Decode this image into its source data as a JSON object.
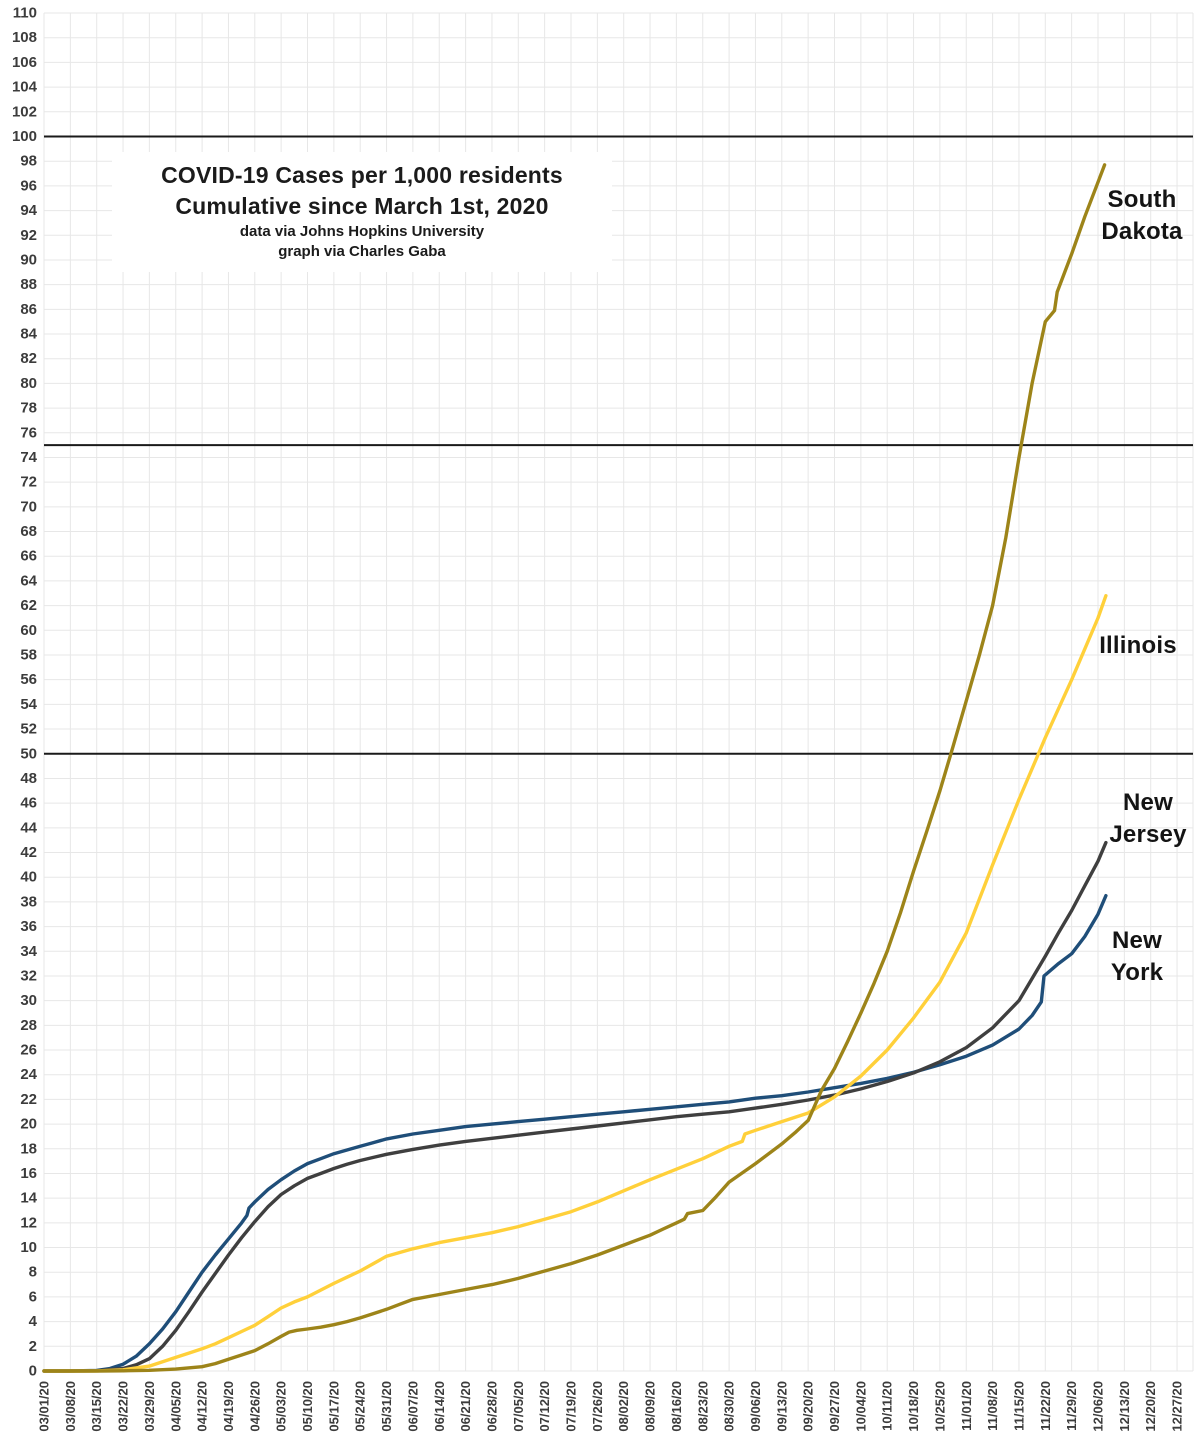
{
  "title": {
    "line1": "COVID-19 Cases per 1,000 residents",
    "line2": "Cumulative since March 1st, 2020",
    "credit1": "data via Johns Hopkins University",
    "credit2": "graph via Charles Gaba"
  },
  "colors": {
    "grid": "#e7e7e7",
    "reference_line": "#1a1a1a",
    "tick_text": "#3c3c3c",
    "background": "#ffffff"
  },
  "chart_data": {
    "type": "line",
    "title": "COVID-19 Cases per 1,000 residents",
    "subtitle": "Cumulative since March 1st, 2020",
    "xlabel": "",
    "ylabel": "cases per 1,000 residents",
    "grid": true,
    "legend_position": "inline-right-labels",
    "x_unit": "weeks since 03/01/20 (fractional weeks = intra-week dates)",
    "x_tick_labels": [
      "03/01/20",
      "03/08/20",
      "03/15/20",
      "03/22/20",
      "03/29/20",
      "04/05/20",
      "04/12/20",
      "04/19/20",
      "04/26/20",
      "05/03/20",
      "05/10/20",
      "05/17/20",
      "05/24/20",
      "05/31/20",
      "06/07/20",
      "06/14/20",
      "06/21/20",
      "06/28/20",
      "07/05/20",
      "07/12/20",
      "07/19/20",
      "07/26/20",
      "08/02/20",
      "08/09/20",
      "08/16/20",
      "08/23/20",
      "08/30/20",
      "09/06/20",
      "09/13/20",
      "09/20/20",
      "09/27/20",
      "10/04/20",
      "10/11/20",
      "10/18/20",
      "10/25/20",
      "11/01/20",
      "11/08/20",
      "11/15/20",
      "11/22/20",
      "11/29/20",
      "12/06/20",
      "12/13/20",
      "12/20/20",
      "12/27/20"
    ],
    "y_axis": {
      "min": 0,
      "max": 110,
      "tick_step": 2,
      "reference_lines": [
        50,
        75,
        100
      ]
    },
    "series": [
      {
        "name": "New York",
        "label_lines": [
          "New",
          "York"
        ],
        "color": "#1F4E79",
        "end_value": 38.5,
        "points": [
          [
            0,
            0
          ],
          [
            1,
            0.01
          ],
          [
            2,
            0.05
          ],
          [
            2.5,
            0.2
          ],
          [
            3,
            0.55
          ],
          [
            3.5,
            1.2
          ],
          [
            4,
            2.2
          ],
          [
            4.5,
            3.4
          ],
          [
            5,
            4.8
          ],
          [
            5.5,
            6.4
          ],
          [
            6,
            8
          ],
          [
            6.5,
            9.4
          ],
          [
            7,
            10.7
          ],
          [
            7.5,
            12
          ],
          [
            7.7,
            12.6
          ],
          [
            7.78,
            13.2
          ],
          [
            8,
            13.7
          ],
          [
            8.5,
            14.7
          ],
          [
            9,
            15.5
          ],
          [
            9.5,
            16.2
          ],
          [
            10,
            16.8
          ],
          [
            10.5,
            17.2
          ],
          [
            11,
            17.6
          ],
          [
            11.5,
            17.9
          ],
          [
            12,
            18.2
          ],
          [
            12.5,
            18.5
          ],
          [
            13,
            18.8
          ],
          [
            14,
            19.2
          ],
          [
            15,
            19.5
          ],
          [
            16,
            19.8
          ],
          [
            17,
            20
          ],
          [
            18,
            20.2
          ],
          [
            19,
            20.4
          ],
          [
            20,
            20.6
          ],
          [
            21,
            20.8
          ],
          [
            22,
            21
          ],
          [
            23,
            21.2
          ],
          [
            24,
            21.4
          ],
          [
            25,
            21.6
          ],
          [
            26,
            21.8
          ],
          [
            27,
            22.1
          ],
          [
            28,
            22.3
          ],
          [
            29,
            22.6
          ],
          [
            30,
            22.95
          ],
          [
            31,
            23.3
          ],
          [
            32,
            23.7
          ],
          [
            33,
            24.2
          ],
          [
            34,
            24.8
          ],
          [
            35,
            25.5
          ],
          [
            36,
            26.4
          ],
          [
            37,
            27.7
          ],
          [
            37.5,
            28.8
          ],
          [
            37.85,
            29.9
          ],
          [
            37.95,
            32
          ],
          [
            38.5,
            33
          ],
          [
            39,
            33.8
          ],
          [
            39.5,
            35.2
          ],
          [
            40,
            37
          ],
          [
            40.3,
            38.5
          ]
        ]
      },
      {
        "name": "New Jersey",
        "label_lines": [
          "New",
          "Jersey"
        ],
        "color": "#3f3f3f",
        "end_value": 42.8,
        "points": [
          [
            0,
            0
          ],
          [
            1,
            0
          ],
          [
            2,
            0.02
          ],
          [
            3,
            0.2
          ],
          [
            3.5,
            0.5
          ],
          [
            4,
            1
          ],
          [
            4.5,
            2
          ],
          [
            5,
            3.3
          ],
          [
            5.5,
            4.8
          ],
          [
            6,
            6.4
          ],
          [
            6.5,
            7.9
          ],
          [
            7,
            9.4
          ],
          [
            7.5,
            10.8
          ],
          [
            8,
            12.1
          ],
          [
            8.5,
            13.3
          ],
          [
            9,
            14.3
          ],
          [
            9.5,
            15
          ],
          [
            10,
            15.6
          ],
          [
            10.5,
            16
          ],
          [
            11,
            16.4
          ],
          [
            11.5,
            16.75
          ],
          [
            12,
            17.05
          ],
          [
            12.5,
            17.3
          ],
          [
            13,
            17.55
          ],
          [
            14,
            17.95
          ],
          [
            15,
            18.3
          ],
          [
            16,
            18.6
          ],
          [
            17,
            18.85
          ],
          [
            18,
            19.1
          ],
          [
            19,
            19.35
          ],
          [
            20,
            19.6
          ],
          [
            21,
            19.85
          ],
          [
            22,
            20.1
          ],
          [
            23,
            20.35
          ],
          [
            24,
            20.6
          ],
          [
            25,
            20.8
          ],
          [
            26,
            21
          ],
          [
            27,
            21.3
          ],
          [
            28,
            21.6
          ],
          [
            29,
            21.95
          ],
          [
            30,
            22.35
          ],
          [
            31,
            22.85
          ],
          [
            32,
            23.45
          ],
          [
            33,
            24.15
          ],
          [
            34,
            25.05
          ],
          [
            35,
            26.2
          ],
          [
            36,
            27.8
          ],
          [
            37,
            30
          ],
          [
            38,
            33.6
          ],
          [
            38.5,
            35.5
          ],
          [
            39,
            37.3
          ],
          [
            39.5,
            39.3
          ],
          [
            40,
            41.3
          ],
          [
            40.3,
            42.8
          ]
        ]
      },
      {
        "name": "Illinois",
        "label_lines": [
          "Illinois"
        ],
        "color": "#FFD03A",
        "end_value": 62.8,
        "points": [
          [
            0,
            0
          ],
          [
            1,
            0
          ],
          [
            2,
            0.01
          ],
          [
            3,
            0.1
          ],
          [
            4,
            0.4
          ],
          [
            5,
            1.1
          ],
          [
            5.5,
            1.45
          ],
          [
            6,
            1.8
          ],
          [
            6.5,
            2.2
          ],
          [
            7,
            2.7
          ],
          [
            7.5,
            3.2
          ],
          [
            8,
            3.7
          ],
          [
            8.5,
            4.4
          ],
          [
            9,
            5.1
          ],
          [
            9.5,
            5.6
          ],
          [
            10,
            6
          ],
          [
            10.5,
            6.55
          ],
          [
            11,
            7.1
          ],
          [
            11.5,
            7.6
          ],
          [
            12,
            8.1
          ],
          [
            12.5,
            8.7
          ],
          [
            13,
            9.3
          ],
          [
            13.5,
            9.6
          ],
          [
            14,
            9.9
          ],
          [
            15,
            10.4
          ],
          [
            16,
            10.8
          ],
          [
            17,
            11.2
          ],
          [
            18,
            11.7
          ],
          [
            19,
            12.3
          ],
          [
            20,
            12.9
          ],
          [
            21,
            13.7
          ],
          [
            22,
            14.6
          ],
          [
            23,
            15.5
          ],
          [
            24,
            16.35
          ],
          [
            25,
            17.2
          ],
          [
            26,
            18.2
          ],
          [
            26.5,
            18.6
          ],
          [
            26.6,
            19.2
          ],
          [
            27,
            19.5
          ],
          [
            28,
            20.2
          ],
          [
            29,
            20.9
          ],
          [
            30,
            22.2
          ],
          [
            31,
            23.9
          ],
          [
            32,
            26
          ],
          [
            33,
            28.6
          ],
          [
            34,
            31.5
          ],
          [
            35,
            35.5
          ],
          [
            36,
            41
          ],
          [
            37,
            46.3
          ],
          [
            38,
            51.3
          ],
          [
            39,
            56
          ],
          [
            40,
            61
          ],
          [
            40.3,
            62.8
          ]
        ]
      },
      {
        "name": "South Dakota",
        "label_lines": [
          "South",
          "Dakota"
        ],
        "color": "#9D8419",
        "end_value": 97.7,
        "points": [
          [
            0,
            0
          ],
          [
            1,
            0
          ],
          [
            2,
            0
          ],
          [
            3,
            0.02
          ],
          [
            4,
            0.06
          ],
          [
            5,
            0.15
          ],
          [
            6,
            0.35
          ],
          [
            6.5,
            0.6
          ],
          [
            7,
            0.95
          ],
          [
            7.5,
            1.3
          ],
          [
            8,
            1.65
          ],
          [
            8.5,
            2.2
          ],
          [
            9,
            2.8
          ],
          [
            9.3,
            3.15
          ],
          [
            9.6,
            3.3
          ],
          [
            10,
            3.4
          ],
          [
            10.5,
            3.55
          ],
          [
            11,
            3.75
          ],
          [
            11.5,
            4
          ],
          [
            12,
            4.3
          ],
          [
            12.5,
            4.65
          ],
          [
            13,
            5
          ],
          [
            13.5,
            5.4
          ],
          [
            14,
            5.8
          ],
          [
            15,
            6.2
          ],
          [
            16,
            6.6
          ],
          [
            17,
            7
          ],
          [
            18,
            7.5
          ],
          [
            19,
            8.1
          ],
          [
            20,
            8.7
          ],
          [
            21,
            9.4
          ],
          [
            22,
            10.2
          ],
          [
            23,
            11
          ],
          [
            23.5,
            11.5
          ],
          [
            24,
            12
          ],
          [
            24.3,
            12.3
          ],
          [
            24.42,
            12.75
          ],
          [
            25,
            13
          ],
          [
            25.5,
            14.1
          ],
          [
            26,
            15.3
          ],
          [
            27,
            16.8
          ],
          [
            28,
            18.4
          ],
          [
            28.5,
            19.3
          ],
          [
            29,
            20.3
          ],
          [
            29.5,
            22.7
          ],
          [
            30,
            24.5
          ],
          [
            30.5,
            26.7
          ],
          [
            31,
            29
          ],
          [
            31.5,
            31.4
          ],
          [
            32,
            34
          ],
          [
            32.5,
            37.1
          ],
          [
            33,
            40.5
          ],
          [
            33.5,
            43.7
          ],
          [
            34,
            47
          ],
          [
            34.5,
            50.6
          ],
          [
            35,
            54.3
          ],
          [
            35.5,
            58
          ],
          [
            36,
            62
          ],
          [
            36.5,
            67.5
          ],
          [
            37,
            74
          ],
          [
            37.5,
            80
          ],
          [
            38,
            85
          ],
          [
            38.35,
            85.9
          ],
          [
            38.45,
            87.4
          ],
          [
            39,
            90.5
          ],
          [
            39.5,
            93.5
          ],
          [
            40,
            96.3
          ],
          [
            40.25,
            97.7
          ]
        ]
      }
    ]
  }
}
